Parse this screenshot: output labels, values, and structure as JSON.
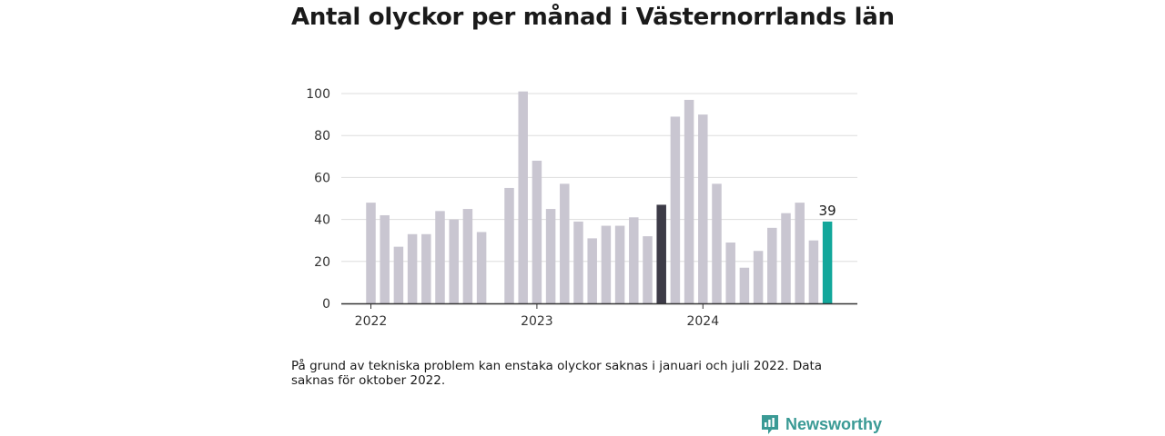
{
  "title": "Antal olyckor per månad i Västernorrlands län",
  "footnote": "På grund av tekniska problem kan enstaka olyckor saknas i januari och juli 2022. Data saknas för oktober 2022.",
  "brand": {
    "name": "Newsworthy",
    "icon": "bar-chart-logo-icon",
    "color": "#3a9a95"
  },
  "colors": {
    "bar": "#c9c6d1",
    "highlight": "#3d3b47",
    "latest": "#12a79b",
    "grid": "#dddddd",
    "axis": "#333333"
  },
  "chart_data": {
    "type": "bar",
    "ylim": [
      0,
      100
    ],
    "yticks": [
      0,
      20,
      40,
      60,
      80,
      100
    ],
    "grid": true,
    "xticks": [
      {
        "label": "2022",
        "index": 0
      },
      {
        "label": "2023",
        "index": 12
      },
      {
        "label": "2024",
        "index": 24
      }
    ],
    "categories": [
      "2022-01",
      "2022-02",
      "2022-03",
      "2022-04",
      "2022-05",
      "2022-06",
      "2022-07",
      "2022-08",
      "2022-09",
      "2022-10",
      "2022-11",
      "2022-12",
      "2023-01",
      "2023-02",
      "2023-03",
      "2023-04",
      "2023-05",
      "2023-06",
      "2023-07",
      "2023-08",
      "2023-09",
      "2023-10",
      "2023-11",
      "2023-12",
      "2024-01",
      "2024-02",
      "2024-03",
      "2024-04",
      "2024-05",
      "2024-06",
      "2024-07",
      "2024-08",
      "2024-09",
      "2024-10"
    ],
    "values": [
      48,
      42,
      27,
      33,
      33,
      44,
      40,
      45,
      34,
      null,
      55,
      101,
      68,
      45,
      57,
      39,
      31,
      37,
      37,
      41,
      32,
      47,
      89,
      97,
      90,
      57,
      29,
      17,
      25,
      36,
      43,
      48,
      30,
      39
    ],
    "highlight_index": 21,
    "latest_index": 33,
    "data_labels": [
      {
        "index": 33,
        "text": "39"
      }
    ]
  }
}
